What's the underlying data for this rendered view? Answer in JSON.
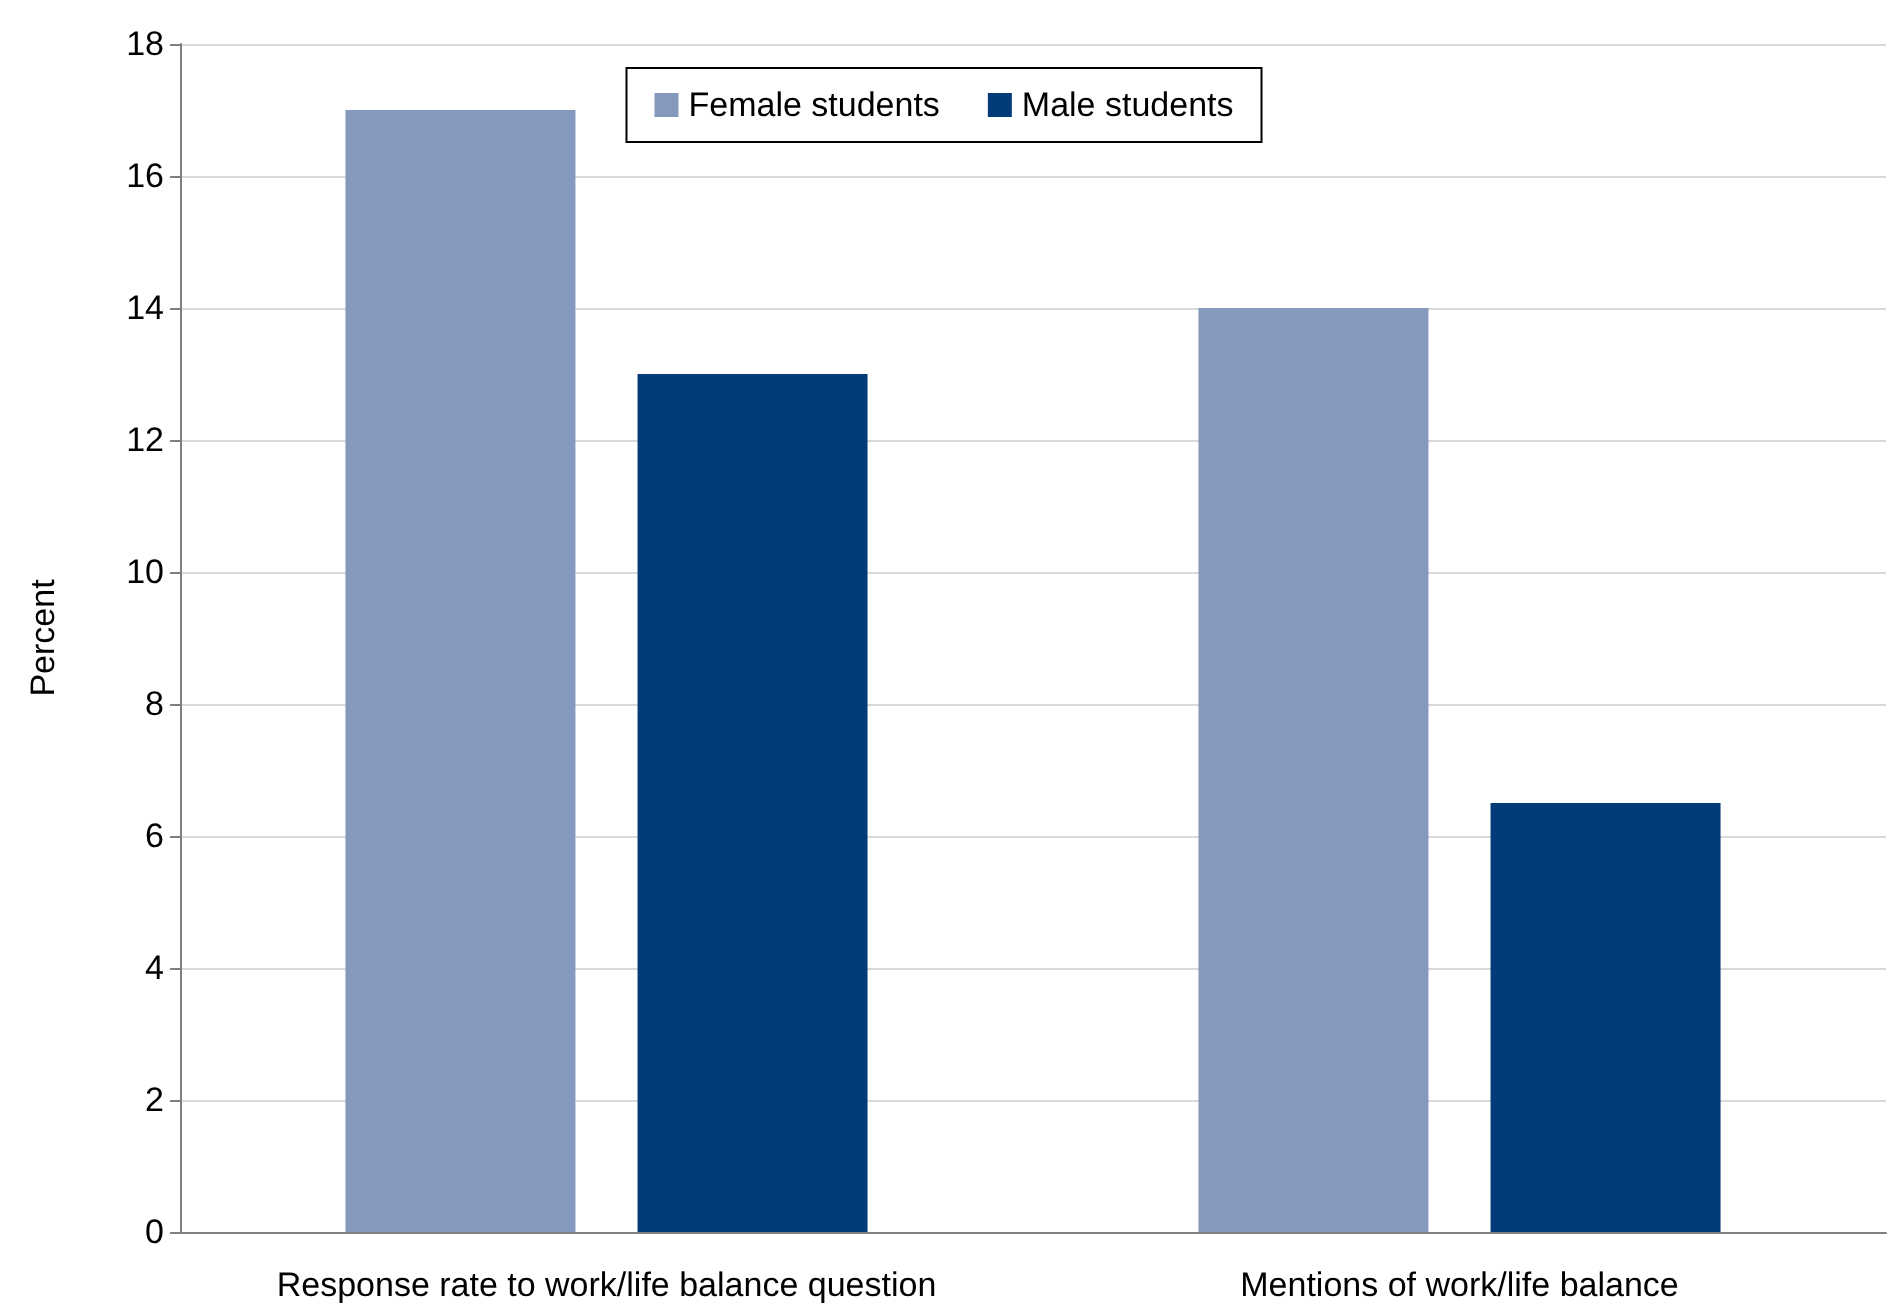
{
  "chart_data": {
    "type": "bar",
    "ylabel": "Percent",
    "categories": [
      "Response rate to work/life balance question",
      "Mentions of work/life balance"
    ],
    "series": [
      {
        "name": "Female students",
        "color": "#8598be",
        "values": [
          17,
          14
        ]
      },
      {
        "name": "Male students",
        "color": "#023b78",
        "values": [
          13,
          6.5
        ]
      }
    ],
    "ylim": [
      0,
      18
    ],
    "yticks": [
      0,
      2,
      4,
      6,
      8,
      10,
      12,
      14,
      16,
      18
    ],
    "grid": "y",
    "legend": "top"
  }
}
